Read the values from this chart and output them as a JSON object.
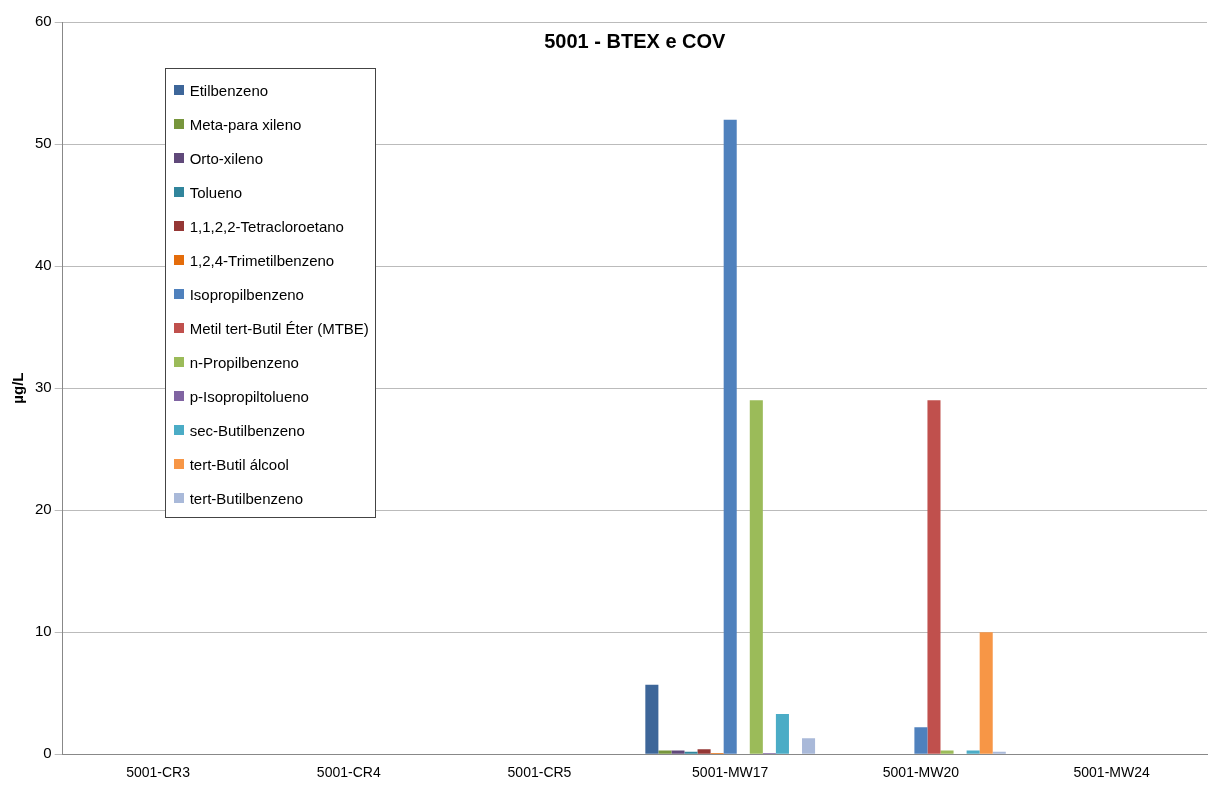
{
  "chart_data": {
    "type": "bar",
    "title": "5001 - BTEX e COV",
    "ylabel": "µg/L",
    "categories": [
      "5001-CR3",
      "5001-CR4",
      "5001-CR5",
      "5001-MW17",
      "5001-MW20",
      "5001-MW24"
    ],
    "ylim": [
      0,
      60
    ],
    "yticks": [
      0,
      10,
      20,
      30,
      40,
      50,
      60
    ],
    "grid": "y",
    "legend": "top left",
    "series": [
      {
        "name": "Etilbenzeno",
        "color": "#3d6699",
        "values": [
          null,
          null,
          null,
          5.7,
          null,
          null
        ]
      },
      {
        "name": "Meta-para xileno",
        "color": "#77963c",
        "values": [
          null,
          null,
          null,
          0.3,
          null,
          null
        ]
      },
      {
        "name": "Orto-xileno",
        "color": "#60497a",
        "values": [
          null,
          null,
          null,
          0.3,
          null,
          null
        ]
      },
      {
        "name": "Tolueno",
        "color": "#31859c",
        "values": [
          null,
          null,
          null,
          0.2,
          null,
          null
        ]
      },
      {
        "name": "1,1,2,2-Tetracloroetano",
        "color": "#953735",
        "values": [
          null,
          null,
          null,
          0.4,
          null,
          null
        ]
      },
      {
        "name": "1,2,4-Trimetilbenzeno",
        "color": "#e46c0a",
        "values": [
          null,
          null,
          null,
          0.1,
          null,
          null
        ]
      },
      {
        "name": "Isopropilbenzeno",
        "color": "#4f81bd",
        "values": [
          null,
          null,
          null,
          52,
          2.2,
          null
        ]
      },
      {
        "name": "Metil tert-Butil Éter (MTBE)",
        "color": "#c0504d",
        "values": [
          null,
          null,
          null,
          null,
          29,
          null
        ]
      },
      {
        "name": "n-Propilbenzeno",
        "color": "#9bbb59",
        "values": [
          null,
          null,
          null,
          29,
          0.3,
          null
        ]
      },
      {
        "name": "p-Isopropiltolueno",
        "color": "#8064a2",
        "values": [
          null,
          null,
          null,
          0.1,
          null,
          null
        ]
      },
      {
        "name": "sec-Butilbenzeno",
        "color": "#4bacc6",
        "values": [
          null,
          null,
          null,
          3.3,
          0.3,
          null
        ]
      },
      {
        "name": "tert-Butil álcool",
        "color": "#f79646",
        "values": [
          null,
          null,
          null,
          null,
          10,
          null
        ]
      },
      {
        "name": "tert-Butilbenzeno",
        "color": "#a9b9d9",
        "values": [
          null,
          null,
          null,
          1.3,
          0.2,
          null
        ]
      }
    ]
  }
}
